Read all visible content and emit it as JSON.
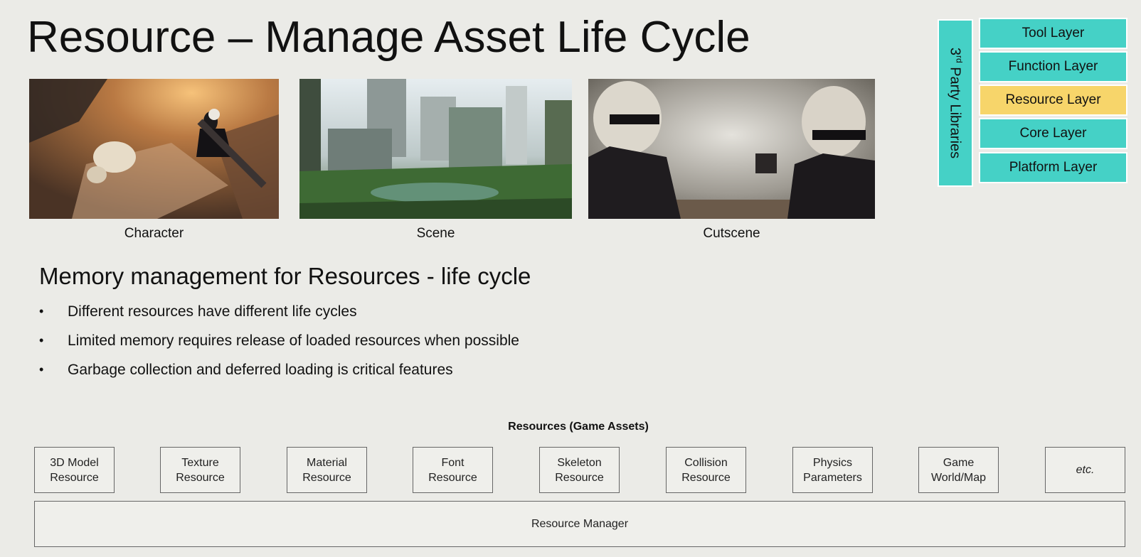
{
  "slide": {
    "title": "Resource – Manage Asset Life Cycle"
  },
  "images": [
    {
      "caption": "Character"
    },
    {
      "caption": "Scene"
    },
    {
      "caption": "Cutscene"
    }
  ],
  "layer_stack": {
    "side_label_main": "3",
    "side_label_sup": "rd",
    "side_label_rest": " Party Libraries",
    "layers": [
      "Tool Layer",
      "Function Layer",
      "Resource Layer",
      "Core Layer",
      "Platform Layer"
    ],
    "highlighted": "Resource Layer",
    "colors": {
      "layer": "#45d1c6",
      "highlight": "#f7d56a"
    }
  },
  "memory": {
    "heading": "Memory management for Resources - life cycle",
    "bullet_glyph": "•",
    "bullets": [
      "Different resources have different life cycles",
      "Limited memory requires release of loaded resources when possible",
      "Garbage collection and deferred loading is critical features"
    ]
  },
  "resources": {
    "title": "Resources (Game Assets)",
    "items": [
      "3D Model\nResource",
      "Texture\nResource",
      "Material\nResource",
      "Font\nResource",
      "Skeleton\nResource",
      "Collision\nResource",
      "Physics\nParameters",
      "Game\nWorld/Map",
      "etc."
    ],
    "manager": "Resource Manager"
  }
}
